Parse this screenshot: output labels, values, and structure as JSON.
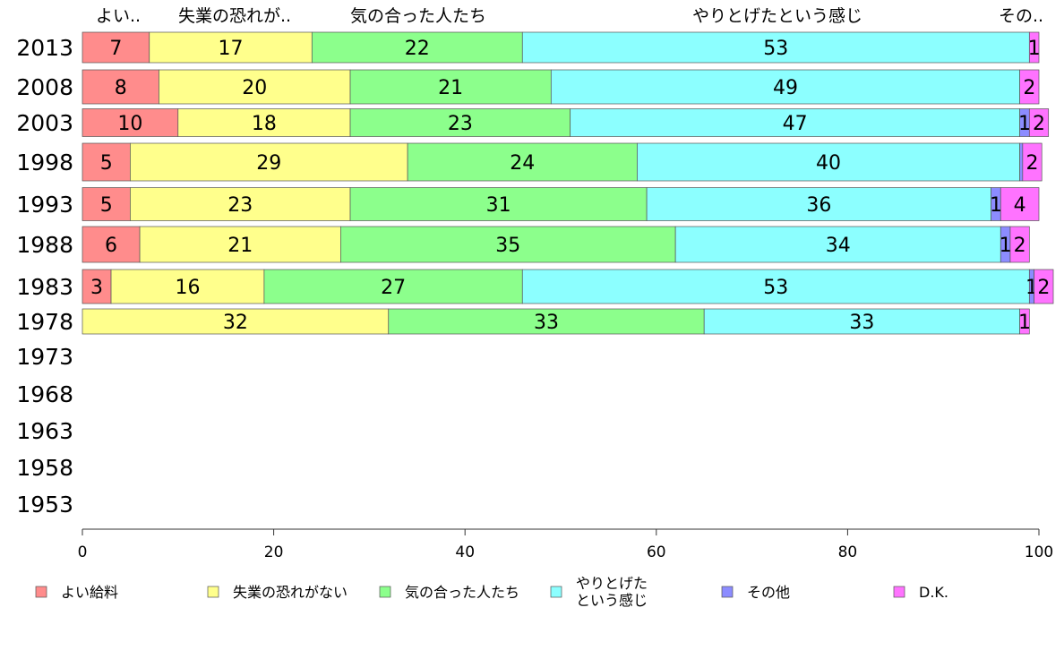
{
  "chart_data": {
    "type": "bar",
    "orientation": "horizontal",
    "stacked": true,
    "grid": false,
    "legend_position": "bottom",
    "xlim": [
      0,
      100
    ],
    "x_ticks": [
      "0",
      "20",
      "40",
      "60",
      "80",
      "100"
    ],
    "categories": [
      "2013",
      "2008",
      "2003",
      "1998",
      "1993",
      "1988",
      "1983",
      "1978",
      "1973",
      "1968",
      "1963",
      "1958",
      "1953"
    ],
    "top_headers": [
      "よい..",
      "失業の恐れが..",
      "気の合った人たち",
      "やりとげたという感じ",
      "その.."
    ],
    "series": [
      {
        "name": "よい給料",
        "legend_lines": [
          "よい給料"
        ],
        "color": "#ff8c8c",
        "values": [
          7,
          8,
          10,
          5,
          5,
          6,
          3,
          null,
          null,
          null,
          null,
          null,
          null
        ]
      },
      {
        "name": "失業の恐れがない",
        "legend_lines": [
          "失業の恐れがない"
        ],
        "color": "#ffff8c",
        "values": [
          17,
          20,
          18,
          29,
          23,
          21,
          16,
          32,
          null,
          null,
          null,
          null,
          null
        ]
      },
      {
        "name": "気の合った人たち",
        "legend_lines": [
          "気の合った人たち"
        ],
        "color": "#8cff8c",
        "values": [
          22,
          21,
          23,
          24,
          31,
          35,
          27,
          33,
          null,
          null,
          null,
          null,
          null
        ]
      },
      {
        "name": "やりとげたという感じ",
        "legend_lines": [
          "やりとげた",
          "という感じ"
        ],
        "color": "#8cffff",
        "values": [
          53,
          49,
          47,
          40,
          36,
          34,
          53,
          33,
          null,
          null,
          null,
          null,
          null
        ]
      },
      {
        "name": "その他",
        "legend_lines": [
          "その他"
        ],
        "color": "#8c8cff",
        "values": [
          null,
          null,
          1,
          0.3,
          1,
          1,
          0.5,
          null,
          null,
          null,
          null,
          null,
          null
        ]
      },
      {
        "name": "D.K.",
        "legend_lines": [
          "D.K."
        ],
        "color": "#ff73ff",
        "values": [
          1,
          2,
          2,
          2,
          4,
          2,
          2,
          1,
          null,
          null,
          null,
          null,
          null
        ]
      }
    ],
    "segment_labels": [
      [
        "7",
        "17",
        "22",
        "53",
        "",
        "1"
      ],
      [
        "8",
        "20",
        "21",
        "49",
        "",
        "2"
      ],
      [
        "10",
        "18",
        "23",
        "47",
        "1",
        "2"
      ],
      [
        "5",
        "29",
        "24",
        "40",
        "",
        "2"
      ],
      [
        "5",
        "23",
        "31",
        "36",
        "1",
        "4"
      ],
      [
        "6",
        "21",
        "35",
        "34",
        "1",
        "2"
      ],
      [
        "3",
        "16",
        "27",
        "53",
        "1",
        "2"
      ],
      [
        "",
        "32",
        "33",
        "33",
        "",
        "1"
      ],
      [
        "",
        "",
        "",
        "",
        "",
        ""
      ],
      [
        "",
        "",
        "",
        "",
        "",
        ""
      ],
      [
        "",
        "",
        "",
        "",
        "",
        ""
      ],
      [
        "",
        "",
        "",
        "",
        "",
        ""
      ],
      [
        "",
        "",
        "",
        "",
        "",
        ""
      ]
    ]
  }
}
